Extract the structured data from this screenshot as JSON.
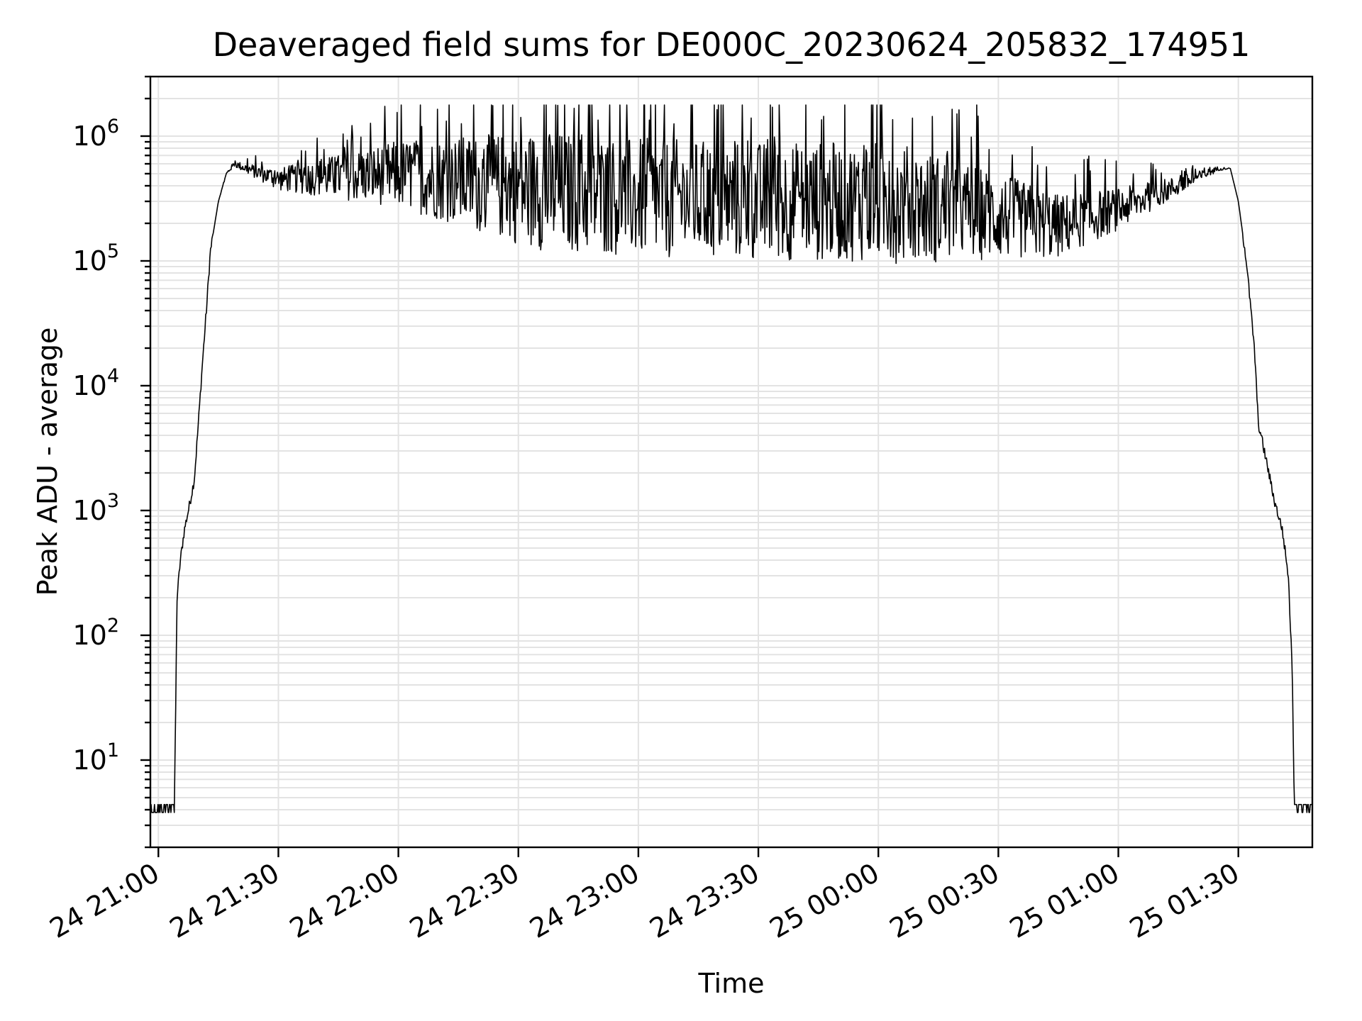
{
  "chart_data": {
    "type": "line",
    "title": "Deaveraged field sums for DE000C_20230624_205832_174951",
    "xlabel": "Time",
    "ylabel": "Peak ADU - average",
    "yscale": "log",
    "ylim": [
      2,
      3000000
    ],
    "xlim": [
      "2023-06-24 20:58:00",
      "2023-06-25 01:48:30"
    ],
    "grid": true,
    "x_ticks": [
      {
        "time": "2023-06-24 21:00",
        "label": "24 21:00"
      },
      {
        "time": "2023-06-24 21:30",
        "label": "24 21:30"
      },
      {
        "time": "2023-06-24 22:00",
        "label": "24 22:00"
      },
      {
        "time": "2023-06-24 22:30",
        "label": "24 22:30"
      },
      {
        "time": "2023-06-24 23:00",
        "label": "24 23:00"
      },
      {
        "time": "2023-06-24 23:30",
        "label": "24 23:30"
      },
      {
        "time": "2023-06-25 00:00",
        "label": "25 00:00"
      },
      {
        "time": "2023-06-25 00:30",
        "label": "25 00:30"
      },
      {
        "time": "2023-06-25 01:00",
        "label": "25 01:00"
      },
      {
        "time": "2023-06-25 01:30",
        "label": "25 01:30"
      }
    ],
    "y_ticks": [
      {
        "value": 10,
        "base": "10",
        "exp": "1"
      },
      {
        "value": 100,
        "base": "10",
        "exp": "2"
      },
      {
        "value": 1000,
        "base": "10",
        "exp": "3"
      },
      {
        "value": 10000,
        "base": "10",
        "exp": "4"
      },
      {
        "value": 100000,
        "base": "10",
        "exp": "5"
      },
      {
        "value": 1000000,
        "base": "10",
        "exp": "6"
      }
    ],
    "series": [
      {
        "color": "#000000",
        "points": [
          [
            "2023-06-24 20:58:00",
            4
          ],
          [
            "2023-06-24 21:04:00",
            4
          ],
          [
            "2023-06-24 21:04:40",
            200
          ],
          [
            "2023-06-24 21:05:30",
            400
          ],
          [
            "2023-06-24 21:06:30",
            700
          ],
          [
            "2023-06-24 21:08:00",
            1200
          ],
          [
            "2023-06-24 21:09:00",
            1800
          ],
          [
            "2023-06-24 21:10:00",
            5000
          ],
          [
            "2023-06-24 21:11:00",
            15000
          ],
          [
            "2023-06-24 21:12:00",
            40000
          ],
          [
            "2023-06-24 21:13:00",
            120000
          ],
          [
            "2023-06-24 21:15:00",
            300000
          ],
          [
            "2023-06-24 21:17:00",
            500000
          ],
          [
            "2023-06-24 21:19:00",
            600000
          ],
          [
            "2023-06-24 21:22:00",
            550000
          ],
          [
            "2023-06-24 21:30:00",
            450000
          ],
          [
            "2023-06-24 22:00:00",
            500000
          ],
          [
            "2023-06-24 22:30:00",
            380000
          ],
          [
            "2023-06-24 23:00:00",
            320000
          ],
          [
            "2023-06-24 23:30:00",
            300000
          ],
          [
            "2023-06-25 00:00:00",
            300000
          ],
          [
            "2023-06-25 00:30:00",
            230000
          ],
          [
            "2023-06-25 00:45:00",
            190000
          ],
          [
            "2023-06-25 01:00:00",
            260000
          ],
          [
            "2023-06-25 01:15:00",
            400000
          ],
          [
            "2023-06-25 01:25:00",
            550000
          ],
          [
            "2023-06-25 01:28:00",
            550000
          ],
          [
            "2023-06-25 01:30:00",
            300000
          ],
          [
            "2023-06-25 01:32:00",
            100000
          ],
          [
            "2023-06-25 01:34:00",
            20000
          ],
          [
            "2023-06-25 01:35:00",
            5000
          ],
          [
            "2023-06-25 01:37:00",
            2500
          ],
          [
            "2023-06-25 01:39:00",
            1200
          ],
          [
            "2023-06-25 01:41:00",
            700
          ],
          [
            "2023-06-25 01:42:30",
            300
          ],
          [
            "2023-06-25 01:43:30",
            50
          ],
          [
            "2023-06-25 01:44:00",
            4
          ],
          [
            "2023-06-25 01:48:30",
            4
          ]
        ]
      }
    ]
  }
}
